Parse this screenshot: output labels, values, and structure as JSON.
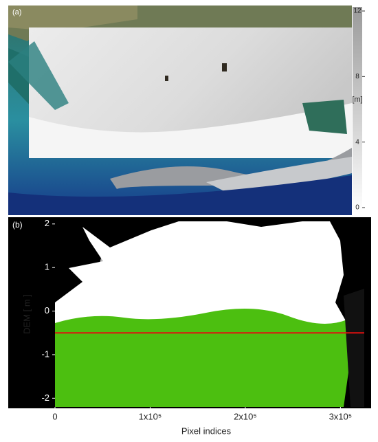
{
  "chart_data": [
    {
      "type": "image-colorbar",
      "panel_label": "(a)",
      "colorbar": {
        "label": "[m]",
        "lim": [
          0,
          12
        ],
        "ticks": [
          0,
          4,
          8,
          12
        ]
      }
    },
    {
      "type": "scatter",
      "panel_label": "(b)",
      "x_label": "Pixel indices",
      "y_label": "DEM [ m ]",
      "xlim": [
        0,
        325000
      ],
      "xticks": [
        0,
        {
          "value": 100000,
          "label": "1x10⁵"
        },
        {
          "value": 200000,
          "label": "2x10⁵"
        },
        {
          "value": 300000,
          "label": "3x10⁵"
        }
      ],
      "ylim": [
        -2.2,
        2.06
      ],
      "yticks": [
        -2,
        -1,
        0,
        1,
        2
      ],
      "reference_line": {
        "value": -0.5,
        "color": "#e01010"
      }
    }
  ]
}
